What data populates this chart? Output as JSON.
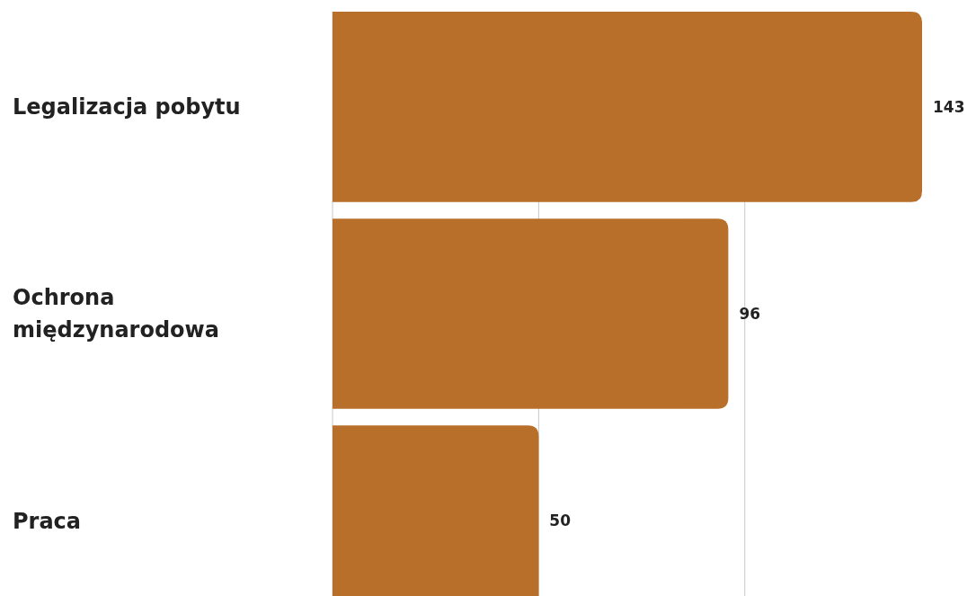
{
  "chart_data": {
    "type": "bar",
    "orientation": "horizontal",
    "categories": [
      "Legalizacja pobytu",
      "Ochrona międzynarodowa",
      "Praca"
    ],
    "values": [
      143,
      96,
      50
    ],
    "color": "#b86f2a",
    "ref_lines": [
      {
        "axis": "x",
        "value": 50,
        "color": "#c8c8c8"
      },
      {
        "axis": "x",
        "value": 100,
        "color": "#c8c8c8"
      }
    ],
    "tick_labels": "y",
    "data_labels": true
  }
}
